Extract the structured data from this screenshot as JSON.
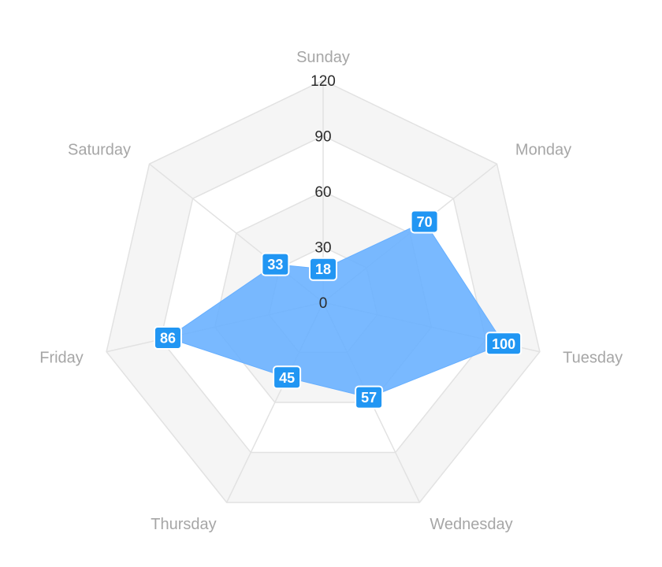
{
  "chart_data": {
    "type": "radar",
    "categories": [
      "Sunday",
      "Monday",
      "Tuesday",
      "Wednesday",
      "Thursday",
      "Friday",
      "Saturday"
    ],
    "series": [
      {
        "values": [
          18,
          70,
          100,
          57,
          45,
          86,
          33
        ]
      }
    ],
    "rlim": [
      0,
      120
    ],
    "ticks": [
      "0",
      "30",
      "60",
      "90",
      "120"
    ],
    "data_labels": [
      "18",
      "70",
      "100",
      "57",
      "45",
      "86",
      "33"
    ],
    "grid": true,
    "legend": "none",
    "colors": {
      "series_fill": "#66afff",
      "label_bg": "#2196f3",
      "label_border": "#ffffff",
      "band_fill": "#f5f5f5",
      "grid_line": "#e2e2e2",
      "axis_label": "#a6a6a6",
      "tick_label": "#2b2b2b"
    }
  }
}
